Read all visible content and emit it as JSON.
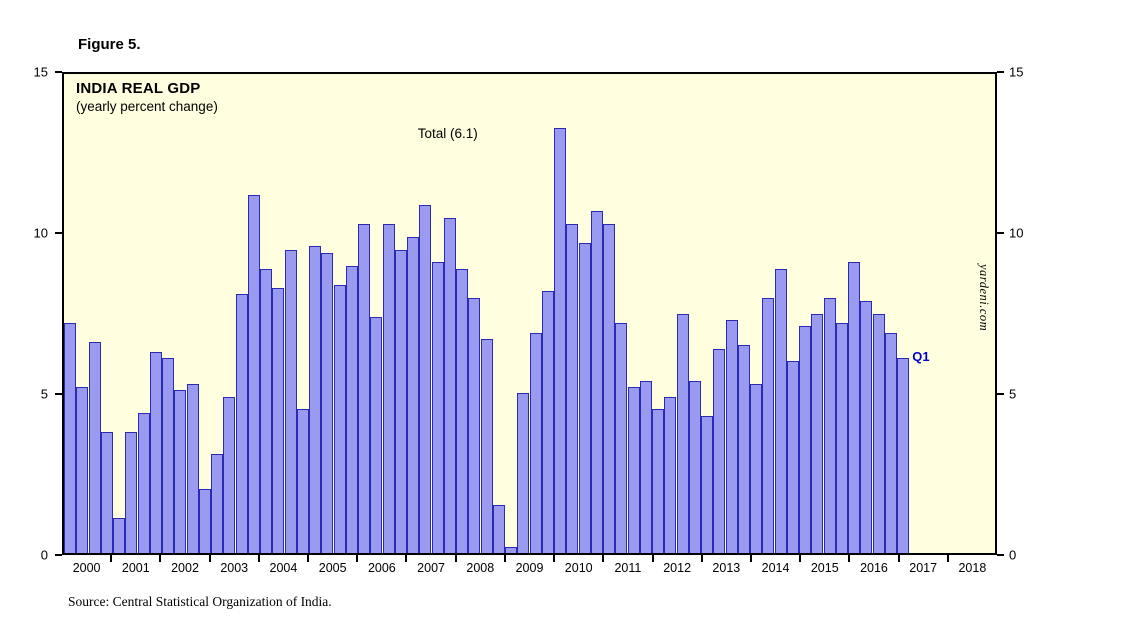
{
  "figure_label": "Figure 5.",
  "source_note": "Source: Central Statistical Organization of India.",
  "watermark": "yardeni.com",
  "colors": {
    "plot_bg": "#ffffe0",
    "bar_fill": "#9a9af0",
    "bar_border": "#2a2ab4",
    "axis": "#000000",
    "q1_label": "#0000cc"
  },
  "chart_data": {
    "type": "bar",
    "title": "INDIA REAL GDP",
    "subtitle": "(yearly percent change)",
    "annotation": "Total (6.1)",
    "last_bar_label": "Q1",
    "xlabel": "",
    "ylabel": "",
    "ylim": [
      0,
      15
    ],
    "y_ticks": [
      0,
      5,
      10,
      15
    ],
    "grid": false,
    "legend": "none",
    "quarters_per_year": 4,
    "x_years": [
      "2000",
      "2001",
      "2002",
      "2003",
      "2004",
      "2005",
      "2006",
      "2007",
      "2008",
      "2009",
      "2010",
      "2011",
      "2012",
      "2013",
      "2014",
      "2015",
      "2016",
      "2017",
      "2018"
    ],
    "series": [
      {
        "year": "2000",
        "values": [
          7.2,
          5.2,
          6.6,
          3.8
        ]
      },
      {
        "year": "2001",
        "values": [
          1.1,
          3.8,
          4.4,
          6.3
        ]
      },
      {
        "year": "2002",
        "values": [
          6.1,
          5.1,
          5.3,
          2.0
        ]
      },
      {
        "year": "2003",
        "values": [
          3.1,
          4.9,
          8.1,
          11.2
        ]
      },
      {
        "year": "2004",
        "values": [
          8.9,
          8.3,
          9.5,
          4.5
        ]
      },
      {
        "year": "2005",
        "values": [
          9.6,
          9.4,
          8.4,
          9.0
        ]
      },
      {
        "year": "2006",
        "values": [
          10.3,
          7.4,
          10.3,
          9.5
        ]
      },
      {
        "year": "2007",
        "values": [
          9.9,
          10.9,
          9.1,
          10.5
        ]
      },
      {
        "year": "2008",
        "values": [
          8.9,
          8.0,
          6.7,
          1.5
        ]
      },
      {
        "year": "2009",
        "values": [
          0.2,
          5.0,
          6.9,
          8.2
        ]
      },
      {
        "year": "2010",
        "values": [
          13.3,
          10.3,
          9.7,
          10.7
        ]
      },
      {
        "year": "2011",
        "values": [
          10.3,
          7.2,
          5.2,
          5.4
        ]
      },
      {
        "year": "2012",
        "values": [
          4.5,
          4.9,
          7.5,
          5.4
        ]
      },
      {
        "year": "2013",
        "values": [
          4.3,
          6.4,
          7.3,
          6.5
        ]
      },
      {
        "year": "2014",
        "values": [
          5.3,
          8.0,
          8.9,
          6.0
        ]
      },
      {
        "year": "2015",
        "values": [
          7.1,
          7.5,
          8.0,
          7.2
        ]
      },
      {
        "year": "2016",
        "values": [
          9.1,
          7.9,
          7.5,
          6.9
        ]
      },
      {
        "year": "2017",
        "values": [
          6.1
        ]
      },
      {
        "year": "2018",
        "values": []
      }
    ]
  }
}
